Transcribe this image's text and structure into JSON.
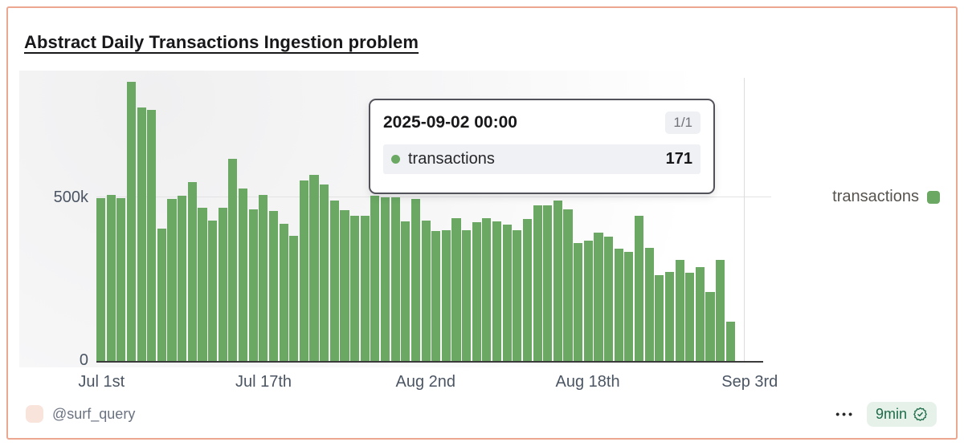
{
  "card": {
    "title": "Abstract Daily Transactions Ingestion problem",
    "border_color": "#eba78f"
  },
  "tooltip": {
    "date": "2025-09-02 00:00",
    "page_badge": "1/1",
    "series_label": "transactions",
    "value": "171",
    "dot_color": "#6aa864"
  },
  "legend": {
    "label": "transactions",
    "swatch_color": "#6aa864"
  },
  "footer": {
    "author": "@surf_query",
    "menu_dots": "•••",
    "refresh_badge": "9min"
  },
  "chart_data": {
    "type": "bar",
    "title": "Abstract Daily Transactions Ingestion problem",
    "xlabel": "",
    "ylabel": "",
    "ylim": [
      0,
      868000
    ],
    "grid_values": [
      500000
    ],
    "y_ticks": [
      "0",
      "500k"
    ],
    "legend_position": "right",
    "hovered_index": 63,
    "x": [
      "2025-07-01",
      "2025-07-02",
      "2025-07-03",
      "2025-07-04",
      "2025-07-05",
      "2025-07-06",
      "2025-07-07",
      "2025-07-08",
      "2025-07-09",
      "2025-07-10",
      "2025-07-11",
      "2025-07-12",
      "2025-07-13",
      "2025-07-14",
      "2025-07-15",
      "2025-07-16",
      "2025-07-17",
      "2025-07-18",
      "2025-07-19",
      "2025-07-20",
      "2025-07-21",
      "2025-07-22",
      "2025-07-23",
      "2025-07-24",
      "2025-07-25",
      "2025-07-26",
      "2025-07-27",
      "2025-07-28",
      "2025-07-29",
      "2025-07-30",
      "2025-07-31",
      "2025-08-01",
      "2025-08-02",
      "2025-08-03",
      "2025-08-04",
      "2025-08-05",
      "2025-08-06",
      "2025-08-07",
      "2025-08-08",
      "2025-08-09",
      "2025-08-10",
      "2025-08-11",
      "2025-08-12",
      "2025-08-13",
      "2025-08-14",
      "2025-08-15",
      "2025-08-16",
      "2025-08-17",
      "2025-08-18",
      "2025-08-19",
      "2025-08-20",
      "2025-08-21",
      "2025-08-22",
      "2025-08-23",
      "2025-08-24",
      "2025-08-25",
      "2025-08-26",
      "2025-08-27",
      "2025-08-28",
      "2025-08-29",
      "2025-08-30",
      "2025-08-31",
      "2025-09-01",
      "2025-09-02"
    ],
    "x_ticks": [
      {
        "label": "Jul 1st",
        "index": 0
      },
      {
        "label": "Jul 17th",
        "index": 16
      },
      {
        "label": "Aug 2nd",
        "index": 32
      },
      {
        "label": "Aug 18th",
        "index": 48
      },
      {
        "label": "Sep 3rd",
        "index": 64
      }
    ],
    "series": [
      {
        "name": "transactions",
        "color": "#6aa864",
        "values": [
          500000,
          509000,
          500000,
          855000,
          777000,
          771000,
          408000,
          497000,
          508000,
          549000,
          471000,
          432000,
          471000,
          621000,
          530000,
          466000,
          510000,
          460000,
          423000,
          385000,
          555000,
          572000,
          541000,
          492000,
          463000,
          447000,
          447000,
          508000,
          502000,
          502000,
          430000,
          497000,
          432000,
          399000,
          401000,
          438000,
          403000,
          426000,
          440000,
          430000,
          419000,
          401000,
          436000,
          477000,
          477000,
          492000,
          467000,
          362000,
          370000,
          395000,
          383000,
          345000,
          337000,
          447000,
          348000,
          265000,
          275000,
          312000,
          272000,
          289000,
          214000,
          312000,
          122000,
          171
        ]
      }
    ]
  }
}
